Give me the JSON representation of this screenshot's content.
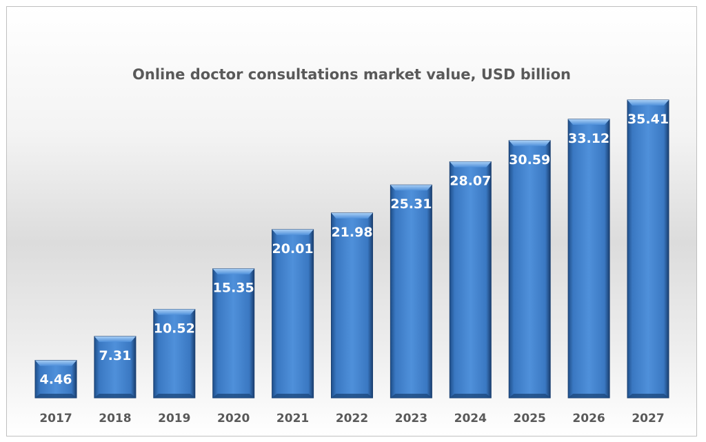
{
  "chart_data": {
    "type": "bar",
    "title": "Online doctor consultations market value, USD billion",
    "categories": [
      "2017",
      "2018",
      "2019",
      "2020",
      "2021",
      "2022",
      "2023",
      "2024",
      "2025",
      "2026",
      "2027"
    ],
    "values": [
      4.46,
      7.31,
      10.52,
      15.35,
      20.01,
      21.98,
      25.31,
      28.07,
      30.59,
      33.12,
      35.41
    ],
    "data_labels": true,
    "ylim": [
      0,
      35.41
    ],
    "grid": false,
    "legend": "none",
    "colors": {
      "bar": "#4a8ad4",
      "bar_dark": "#1f4f8a",
      "label": "#ffffff",
      "axis_text": "#595959"
    }
  }
}
